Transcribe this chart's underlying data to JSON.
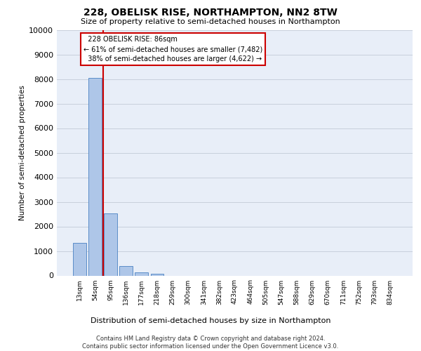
{
  "title": "228, OBELISK RISE, NORTHAMPTON, NN2 8TW",
  "subtitle": "Size of property relative to semi-detached houses in Northampton",
  "xlabel": "Distribution of semi-detached houses by size in Northampton",
  "ylabel": "Number of semi-detached properties",
  "property_label": "228 OBELISK RISE: 86sqm",
  "pct_smaller": 61,
  "count_smaller": 7482,
  "pct_larger": 38,
  "count_larger": 4622,
  "bar_labels": [
    "13sqm",
    "54sqm",
    "95sqm",
    "136sqm",
    "177sqm",
    "218sqm",
    "259sqm",
    "300sqm",
    "341sqm",
    "382sqm",
    "423sqm",
    "464sqm",
    "505sqm",
    "547sqm",
    "588sqm",
    "629sqm",
    "670sqm",
    "711sqm",
    "752sqm",
    "793sqm",
    "834sqm"
  ],
  "bar_values": [
    1320,
    8050,
    2530,
    380,
    130,
    80,
    0,
    0,
    0,
    0,
    0,
    0,
    0,
    0,
    0,
    0,
    0,
    0,
    0,
    0,
    0
  ],
  "bar_color": "#aec6e8",
  "bar_edge_color": "#5b8dc8",
  "vline_color": "#cc0000",
  "annotation_edge_color": "#cc0000",
  "ylim_max": 10000,
  "yticks": [
    0,
    1000,
    2000,
    3000,
    4000,
    5000,
    6000,
    7000,
    8000,
    9000,
    10000
  ],
  "grid_color": "#c8d0dc",
  "bg_color": "#e8eef8",
  "footer_line1": "Contains HM Land Registry data © Crown copyright and database right 2024.",
  "footer_line2": "Contains public sector information licensed under the Open Government Licence v3.0."
}
